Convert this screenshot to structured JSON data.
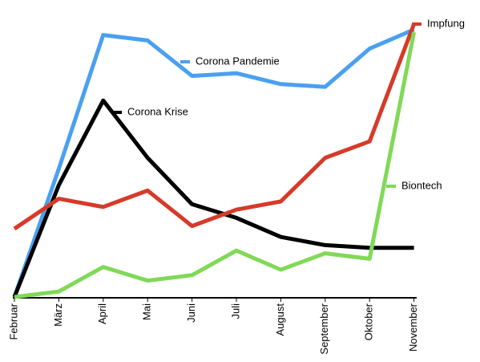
{
  "chart_data": {
    "type": "line",
    "categories": [
      "Februar",
      "März",
      "April",
      "Mai",
      "Juni",
      "Juli",
      "August",
      "September",
      "Oktober",
      "November"
    ],
    "ylim": [
      0,
      100
    ],
    "series": [
      {
        "name": "Corona Pandemie",
        "color": "#4aa0f0",
        "values": [
          0,
          47,
          96,
          94,
          81,
          82,
          78,
          77,
          91,
          98
        ]
      },
      {
        "name": "Corona Krise",
        "color": "#000000",
        "values": [
          0,
          41,
          72,
          51,
          34,
          29,
          22,
          19,
          18,
          18
        ]
      },
      {
        "name": "Impfung",
        "color": "#d63a2a",
        "values": [
          25,
          36,
          33,
          39,
          26,
          32,
          35,
          51,
          57,
          100
        ]
      },
      {
        "name": "Biontech",
        "color": "#80d957",
        "values": [
          0,
          2,
          11,
          6,
          8,
          17,
          10,
          16,
          14,
          97
        ]
      }
    ]
  }
}
